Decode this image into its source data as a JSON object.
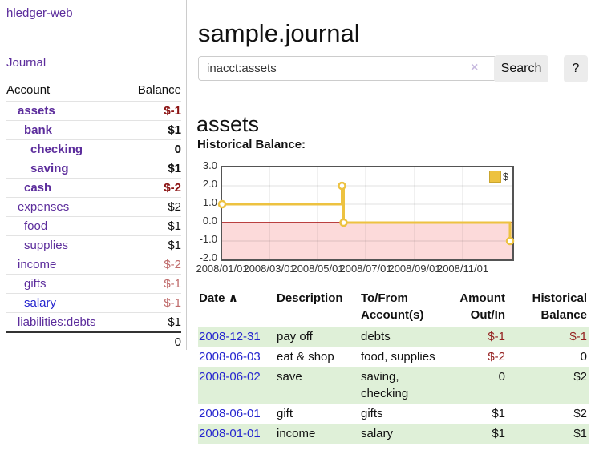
{
  "app": {
    "brand": "hledger-web",
    "nav_journal": "Journal"
  },
  "colors": {
    "purple_link": "#5c2d9c",
    "blue_link": "#2626cf",
    "negative_strong": "#8b1313",
    "negative_soft": "#bf6b6b",
    "table_negative": "#941f1f",
    "row_stripe_green": "#dff0d8",
    "chart_line_gold": "#EDC240",
    "chart_negative_region_pink": "#fcdada",
    "chart_zero_line_red": "#a40000",
    "plot_border_gray": "#545454"
  },
  "sidebar": {
    "col_account": "Account",
    "col_balance": "Balance",
    "accounts": [
      {
        "name": "assets",
        "indent": 1,
        "bold": true,
        "balance": "$-1",
        "negative": "strong",
        "link": "purple"
      },
      {
        "name": "bank",
        "indent": 2,
        "bold": true,
        "balance": "$1",
        "negative": "none",
        "link": "purple"
      },
      {
        "name": "checking",
        "indent": 3,
        "bold": true,
        "balance": "0",
        "negative": "none",
        "link": "purple"
      },
      {
        "name": "saving",
        "indent": 3,
        "bold": true,
        "balance": "$1",
        "negative": "none",
        "link": "purple"
      },
      {
        "name": "cash",
        "indent": 2,
        "bold": true,
        "balance": "$-2",
        "negative": "strong",
        "link": "purple"
      },
      {
        "name": "expenses",
        "indent": 1,
        "bold": false,
        "balance": "$2",
        "negative": "none",
        "link": "purple"
      },
      {
        "name": "food",
        "indent": 2,
        "bold": false,
        "balance": "$1",
        "negative": "none",
        "link": "purple"
      },
      {
        "name": "supplies",
        "indent": 2,
        "bold": false,
        "balance": "$1",
        "negative": "none",
        "link": "purple"
      },
      {
        "name": "income",
        "indent": 1,
        "bold": false,
        "balance": "$-2",
        "negative": "soft",
        "link": "purple"
      },
      {
        "name": "gifts",
        "indent": 2,
        "bold": false,
        "balance": "$-1",
        "negative": "soft",
        "link": "purple"
      },
      {
        "name": "salary",
        "indent": 2,
        "bold": false,
        "balance": "$-1",
        "negative": "soft",
        "link": "blue"
      },
      {
        "name": "liabilities:debts",
        "indent": 1,
        "bold": false,
        "balance": "$1",
        "negative": "none",
        "link": "purple"
      }
    ],
    "total": "0"
  },
  "main": {
    "title": "sample.journal",
    "search": {
      "value": "inacct:assets",
      "clear_icon": "×",
      "button_label": "Search",
      "help_label": "?"
    },
    "account_heading": "assets",
    "chart_title": "Historical Balance:"
  },
  "chart_data": {
    "type": "line",
    "step": true,
    "title": "Historical Balance:",
    "legend": {
      "label": "$",
      "position": "top-right"
    },
    "yticks": [
      "3.0",
      "2.0",
      "1.0",
      "0.0",
      "-1.0",
      "-2.0"
    ],
    "ylim": [
      -2,
      3
    ],
    "xticks": [
      "2008/01/01",
      "2008/03/01",
      "2008/05/01",
      "2008/07/01",
      "2008/09/01",
      "2008/11/01"
    ],
    "series": [
      {
        "name": "$",
        "points": [
          {
            "x": "2008/01/01",
            "y": 1
          },
          {
            "x": "2008/06/01",
            "y": 2
          },
          {
            "x": "2008/06/03",
            "y": 0
          },
          {
            "x": "2008/12/31",
            "y": -1
          }
        ]
      }
    ],
    "grid": true,
    "negative_region_shaded": true
  },
  "register": {
    "sort_icon": "∧",
    "headers": {
      "date": "Date",
      "description": "Description",
      "accounts": "To/From Account(s)",
      "amount": "Amount Out/In",
      "balance": "Historical Balance"
    },
    "rows": [
      {
        "date": "2008-12-31",
        "description": "pay off",
        "accounts": "debts",
        "amount": "$-1",
        "amount_negative": true,
        "balance": "$-1",
        "balance_negative": true
      },
      {
        "date": "2008-06-03",
        "description": "eat & shop",
        "accounts": "food, supplies",
        "amount": "$-2",
        "amount_negative": true,
        "balance": "0",
        "balance_negative": false
      },
      {
        "date": "2008-06-02",
        "description": "save",
        "accounts": "saving, checking",
        "amount": "0",
        "amount_negative": false,
        "balance": "$2",
        "balance_negative": false
      },
      {
        "date": "2008-06-01",
        "description": "gift",
        "accounts": "gifts",
        "amount": "$1",
        "amount_negative": false,
        "balance": "$2",
        "balance_negative": false
      },
      {
        "date": "2008-01-01",
        "description": "income",
        "accounts": "salary",
        "amount": "$1",
        "amount_negative": false,
        "balance": "$1",
        "balance_negative": false
      }
    ]
  }
}
